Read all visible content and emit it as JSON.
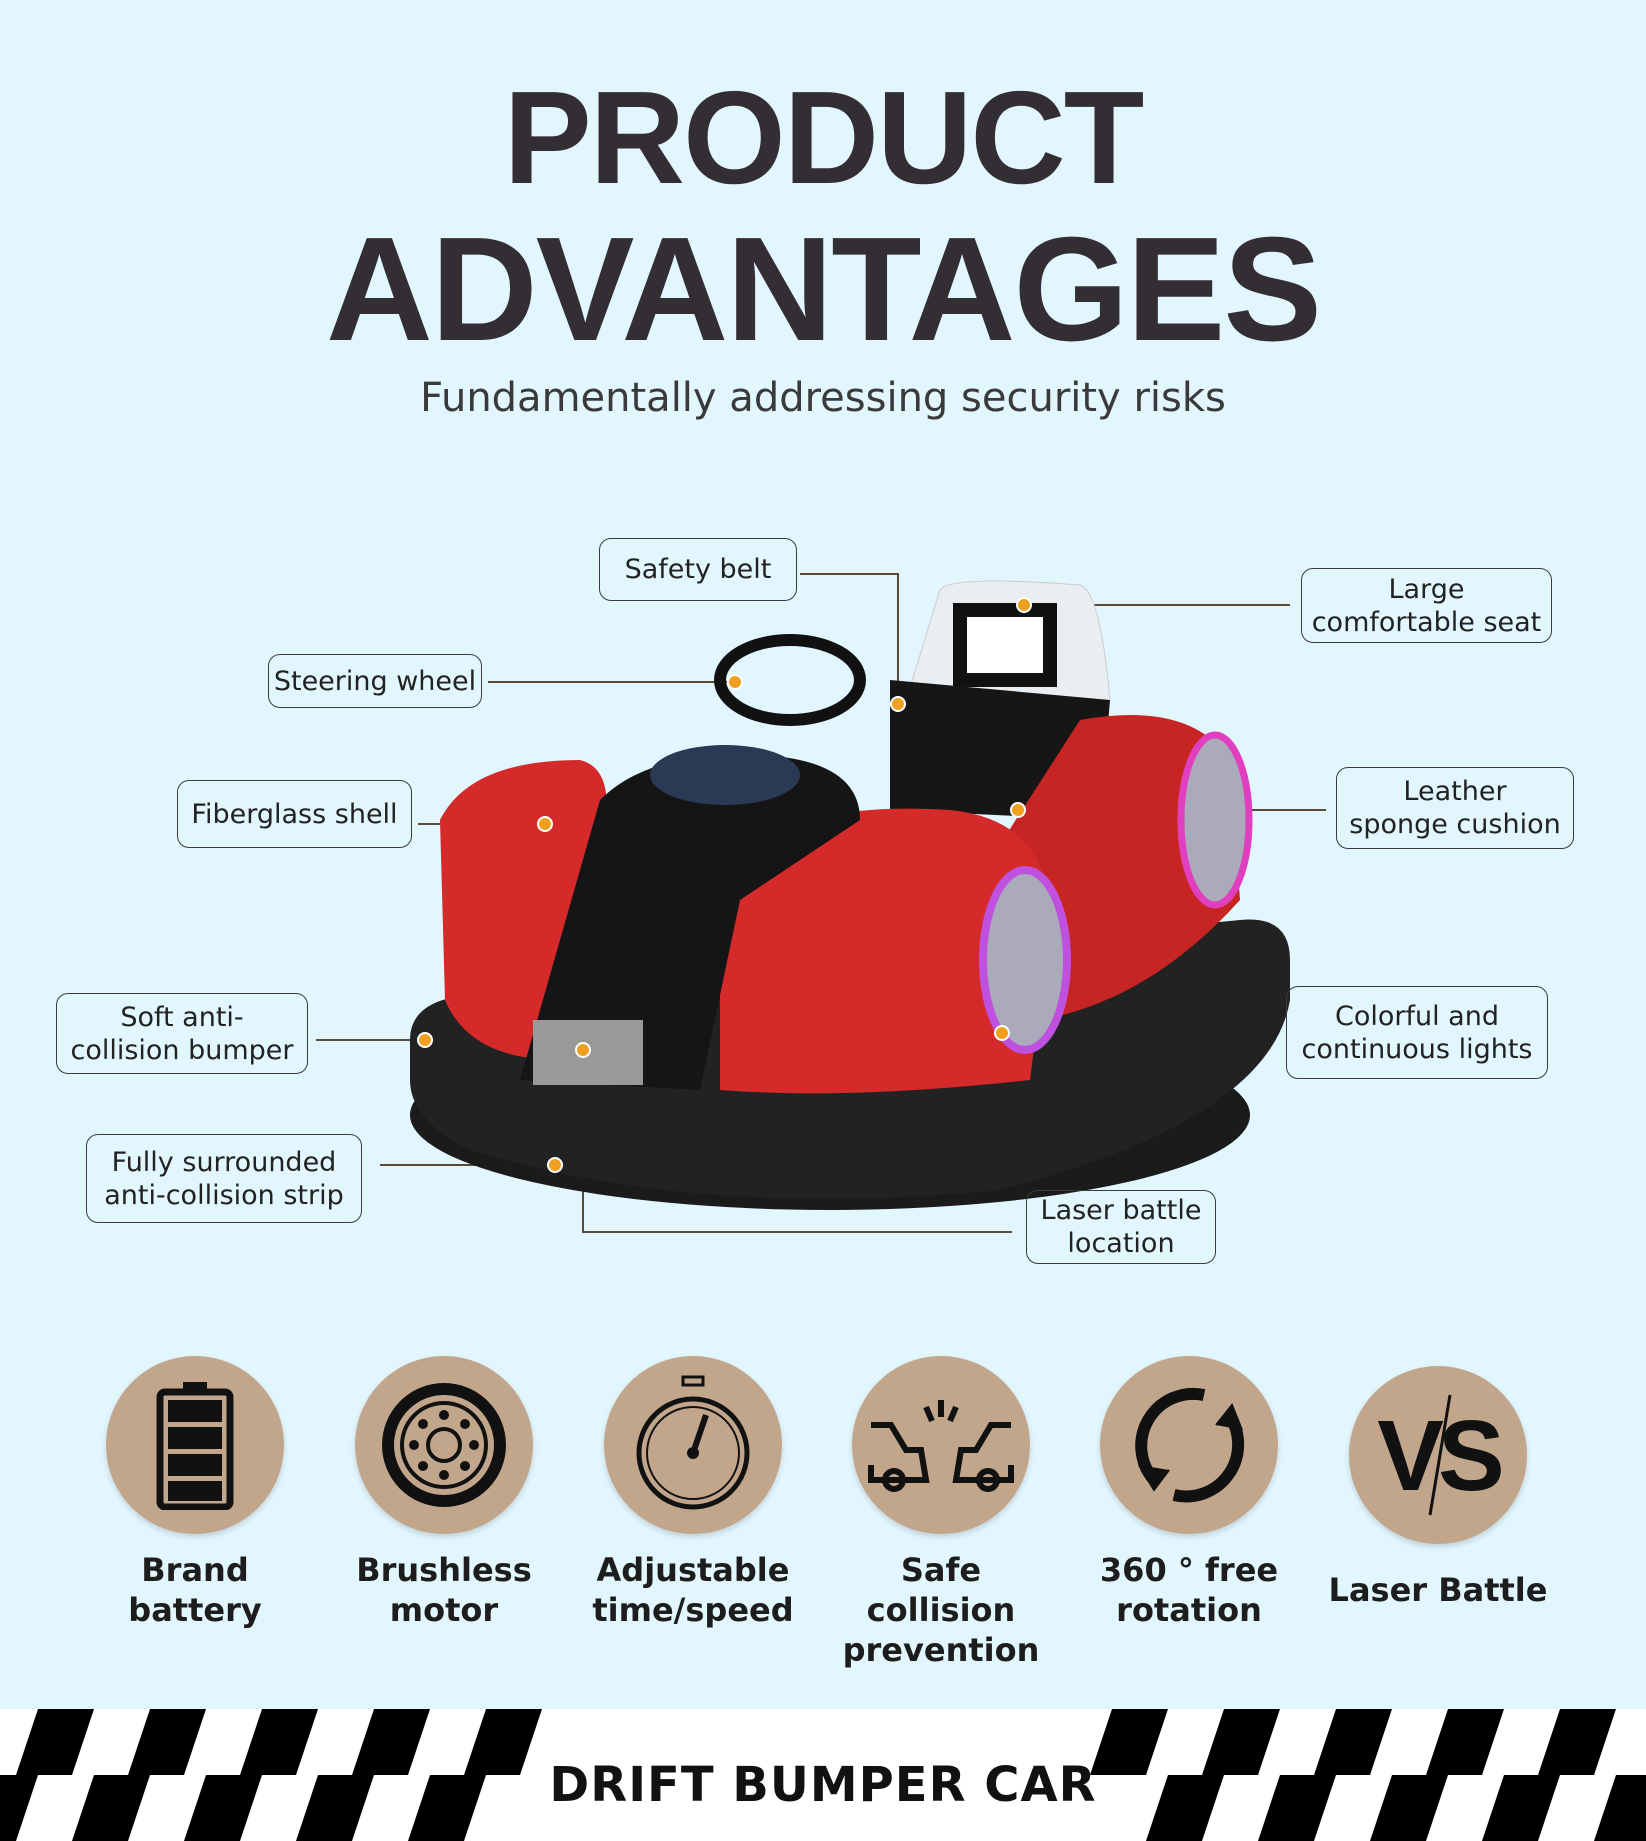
{
  "header": {
    "title_line1": "PRODUCT",
    "title_line2": "ADVANTAGES",
    "subtitle": "Fundamentally addressing security risks"
  },
  "callouts": [
    {
      "id": "safety-belt",
      "label": "Safety belt"
    },
    {
      "id": "large-seat",
      "label": "Large\ncomfortable seat"
    },
    {
      "id": "steering-wheel",
      "label": "Steering wheel"
    },
    {
      "id": "fiberglass-shell",
      "label": "Fiberglass shell"
    },
    {
      "id": "leather-cushion",
      "label": "Leather\nsponge cushion"
    },
    {
      "id": "soft-bumper",
      "label": "Soft anti-\ncollision bumper"
    },
    {
      "id": "colorful-lights",
      "label": "Colorful and\ncontinuous lights"
    },
    {
      "id": "anti-collision-strip",
      "label": "Fully surrounded\nanti-collision strip"
    },
    {
      "id": "laser-location",
      "label": "Laser battle\nlocation"
    }
  ],
  "features": [
    {
      "label": "Brand\nbattery",
      "icon": "battery-icon"
    },
    {
      "label": "Brushless\nmotor",
      "icon": "motor-icon"
    },
    {
      "label": "Adjustable\ntime/speed",
      "icon": "stopwatch-icon"
    },
    {
      "label": "Safe collision\nprevention",
      "icon": "collision-icon"
    },
    {
      "label": "360 ° free\nrotation",
      "icon": "rotation-icon"
    },
    {
      "label": "Laser Battle",
      "icon": "vs-icon"
    }
  ],
  "banner": {
    "text": "DRIFT BUMPER CAR"
  },
  "colors": {
    "background": "#e2f6fe",
    "icon_circle": "#c2a68c",
    "car_red": "#d42a2a",
    "dot": "#f0a020"
  }
}
